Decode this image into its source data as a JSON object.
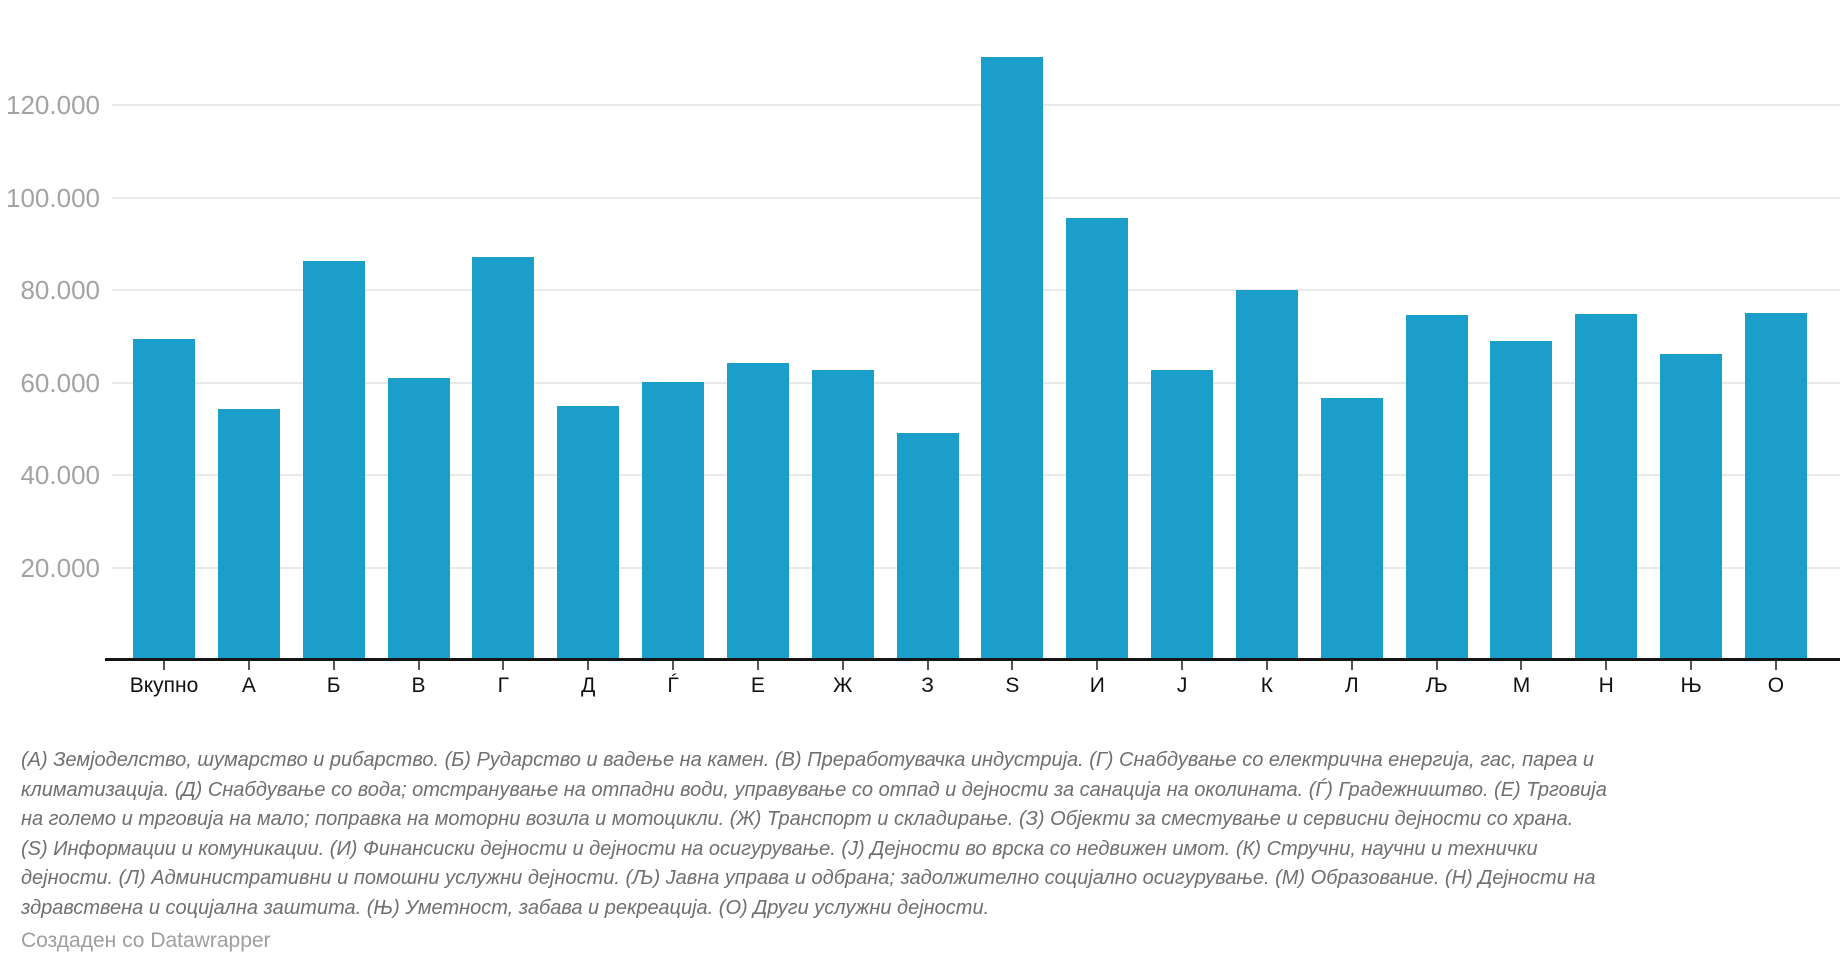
{
  "chart_data": {
    "type": "bar",
    "categories": [
      "Вкупно",
      "А",
      "Б",
      "В",
      "Г",
      "Д",
      "Ѓ",
      "Е",
      "Ж",
      "З",
      "Ѕ",
      "И",
      "Ј",
      "К",
      "Л",
      "Љ",
      "М",
      "Н",
      "Њ",
      "О"
    ],
    "values": [
      69400,
      54200,
      86200,
      60900,
      87200,
      55000,
      60200,
      64300,
      62800,
      49100,
      130300,
      95600,
      62800,
      80000,
      56700,
      74500,
      68900,
      74900,
      66200,
      75100
    ],
    "title": "",
    "xlabel": "",
    "ylabel": "",
    "ylim": [
      0,
      134000
    ],
    "ytick_values": [
      20000,
      40000,
      60000,
      80000,
      100000,
      120000
    ],
    "ytick_labels": [
      "20.000",
      "40.000",
      "60.000",
      "80.000",
      "100.000",
      "120.000"
    ],
    "grid": "horizontal",
    "legend": "none",
    "bar_color": "#1b9ec9",
    "gridline_color": "#e9e9e9",
    "axis_line_color": "#141414",
    "ylabel_color": "#a3a3a3",
    "xlabel_color": "#111111"
  },
  "footnote": {
    "lines": [
      "(А) Земјоделство, шумарство и рибарство. (Б) Рударство и вадење на камен. (В) Преработувачка индустрија. (Г) Снабдување со електрична енергија, гас, пареа и",
      "климатизација. (Д) Снабдување со вода; отстранување на отпадни води, управување со отпад и дејности за санација на околината. (Ѓ) Градежништво. (Е) Трговија",
      "на големо и трговија на мало; поправка на моторни возила и мотоцикли. (Ж) Транспорт и складирање. (З) Објекти за сместување и сервисни дејности со храна.",
      "(Ѕ) Информации и комуникации. (И) Финансиски дејности и дејности на осигурување. (Ј) Дејности во врска со недвижен имот. (К) Стручни, научни и технички",
      "дејности. (Л) Административни и помошни услужни дејности. (Љ) Јавна управа и одбрана; задолжително социјално осигурување. (М) Образование. (Н) Дејности на",
      "здравствена и социјална заштита. (Њ) Уметност, забава и рекреација. (О) Други услужни дејности."
    ]
  },
  "attribution": "Создаден со Datawrapper"
}
